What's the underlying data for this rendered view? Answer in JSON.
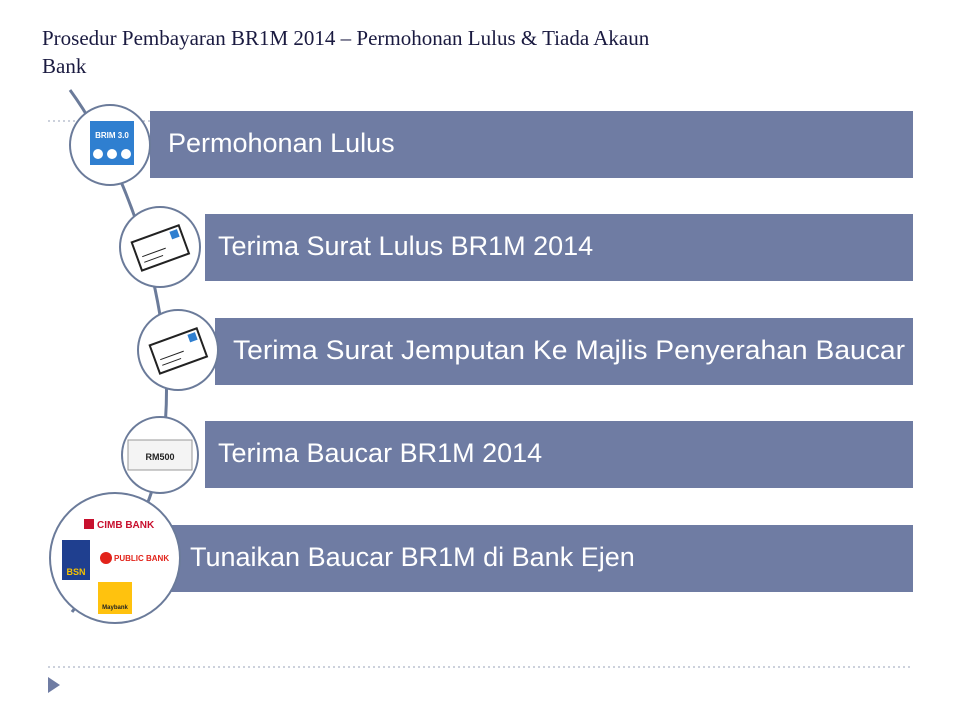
{
  "header": {
    "title": "Prosedur Pembayaran BR1M 2014 – Permohonan Lulus & Tiada Akaun Bank"
  },
  "steps": [
    {
      "label": "Permohonan Lulus",
      "icon_text": "BRIM 3.0"
    },
    {
      "label": "Terima Surat Lulus BR1M 2014"
    },
    {
      "label": "Terima Surat Jemputan Ke Majlis Penyerahan Baucar"
    },
    {
      "label": "Terima Baucar BR1M 2014",
      "icon_text": "RM500"
    },
    {
      "label": "Tunaikan Baucar BR1M di Bank Ejen",
      "banks": [
        "CIMB BANK",
        "PUBLIC BANK",
        "BSN",
        "Maybank"
      ]
    }
  ]
}
